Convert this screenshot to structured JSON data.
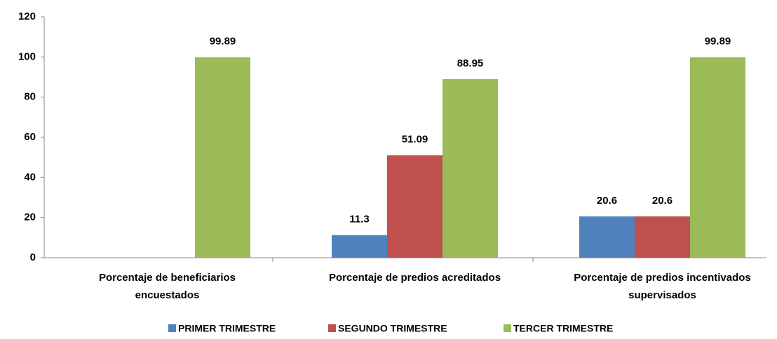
{
  "chart_data": {
    "type": "bar",
    "categories": [
      "Porcentaje de beneficiarios encuestados",
      "Porcentaje de predios acreditados",
      "Porcentaje de predios incentivados supervisados"
    ],
    "series": [
      {
        "name": "PRIMER TRIMESTRE",
        "color": "#4f81bd",
        "values": [
          null,
          11.3,
          20.6
        ]
      },
      {
        "name": "SEGUNDO TRIMESTRE",
        "color": "#c0504d",
        "values": [
          null,
          51.09,
          20.6
        ]
      },
      {
        "name": "TERCER TRIMESTRE",
        "color": "#9bbb59",
        "values": [
          99.89,
          88.95,
          99.89
        ]
      }
    ],
    "ylim": [
      0,
      120
    ],
    "yticks": [
      0,
      20,
      40,
      60,
      80,
      100,
      120
    ],
    "grid": false,
    "legend": "bottom"
  }
}
